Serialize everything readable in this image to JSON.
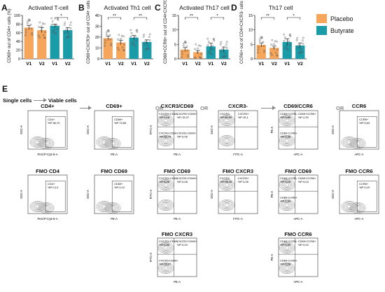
{
  "colors": {
    "placebo": "#F5A65B",
    "butyrate": "#1A9BA8"
  },
  "legend": [
    {
      "name": "Placebo",
      "color": "#F5A65B"
    },
    {
      "name": "Butyrate",
      "color": "#1A9BA8"
    }
  ],
  "chart_data": [
    {
      "type": "bar",
      "label": "A",
      "title": "Activated T-cell",
      "ylabel": "CD69+ out of CD4+ cells (%)",
      "ylim": [
        0,
        100
      ],
      "yticks": [
        0,
        20,
        40,
        60,
        80,
        100
      ],
      "categories": [
        "V1",
        "V2",
        "V1",
        "V2"
      ],
      "values": [
        72,
        66,
        76,
        66
      ],
      "errors": [
        5,
        6,
        4,
        6
      ],
      "groups": [
        "placebo",
        "placebo",
        "butyrate",
        "butyrate"
      ],
      "sig": [
        {
          "from": 2,
          "to": 3,
          "label": "*"
        }
      ]
    },
    {
      "type": "bar",
      "label": "B",
      "title": "Activated Th1 cell",
      "ylabel": "CD69+CXCR3+ out of CD4+ cells (%)",
      "ylim": [
        0,
        40
      ],
      "yticks": [
        0,
        10,
        20,
        30,
        40
      ],
      "categories": [
        "V1",
        "V2",
        "V1",
        "V2"
      ],
      "values": [
        19,
        15,
        19.5,
        15.5
      ],
      "errors": [
        2,
        2,
        2,
        2
      ],
      "groups": [
        "placebo",
        "placebo",
        "butyrate",
        "butyrate"
      ],
      "sig": [
        {
          "from": 0,
          "to": 1,
          "label": "**"
        },
        {
          "from": 2,
          "to": 3,
          "label": "**"
        }
      ]
    },
    {
      "type": "bar",
      "label": "C",
      "title": "Activated Th17 cell",
      "ylabel": "CD69+CCR6+ out of CD4+CXCR3- cells (%)",
      "ylim": [
        0,
        15
      ],
      "yticks": [
        0,
        5,
        10,
        15
      ],
      "categories": [
        "V1",
        "V2",
        "V1",
        "V2"
      ],
      "values": [
        3.2,
        2.3,
        4.3,
        3.2
      ],
      "errors": [
        0.7,
        0.6,
        1.1,
        0.9
      ],
      "groups": [
        "placebo",
        "placebo",
        "butyrate",
        "butyrate"
      ],
      "sig": [
        {
          "from": 0,
          "to": 1,
          "label": "**"
        },
        {
          "from": 2,
          "to": 3,
          "label": "*"
        }
      ]
    },
    {
      "type": "bar",
      "label": "D",
      "title": "Th17 cell",
      "ylabel": "CCR6+ out of CD4+CXCR3- cells (%)",
      "ylim": [
        0,
        15
      ],
      "yticks": [
        0,
        5,
        10,
        15
      ],
      "categories": [
        "V1",
        "V2",
        "V1",
        "V2"
      ],
      "values": [
        4.8,
        3.8,
        5.8,
        4.6
      ],
      "errors": [
        0.7,
        0.6,
        1.1,
        0.9
      ],
      "groups": [
        "placebo",
        "placebo",
        "butyrate",
        "butyrate"
      ],
      "sig": [
        {
          "from": 0,
          "to": 1,
          "label": "**"
        },
        {
          "from": 2,
          "to": 3,
          "label": "*"
        }
      ]
    }
  ],
  "panel_e": {
    "label": "E",
    "single_cells": "Single cells",
    "viable_cells": "Viable cells",
    "or": "OR",
    "plots": [
      {
        "title": "CD4+",
        "xlab": "PerCP-Cy5-5-A",
        "ylab": "SSC-A",
        "gates": [
          "CD4+",
          "%P:38,70"
        ]
      },
      {
        "title": "CD69+",
        "xlab": "PE-A",
        "ylab": "SSC-A",
        "gates": [
          "CD69+",
          "%P:73,89"
        ]
      },
      {
        "title": "CXCR3/CD69",
        "xlab": "PE-A",
        "ylab": "FITC-A",
        "gates": [
          "CXCR3+CD69-",
          "%P:1,18",
          "CXCR3+CD69+",
          "%P:15,07",
          "CXCR3-CD69-",
          "%P:83,75",
          "CXCR3-CD69+",
          "%P:0,06"
        ]
      },
      {
        "title": "CXCR3-",
        "xlab": "FITC-A",
        "ylab": "SSC-A",
        "gates": [
          "CXCR3-",
          "%P:82,90",
          "CXCR3+",
          "%P:15,1"
        ]
      },
      {
        "title": "CD69/CCR6",
        "xlab": "APC-A",
        "ylab": "PE-A",
        "gates": [
          "CD69+CCR6-",
          "%P:0,89",
          "CD69+CCR6+",
          "%P:2,92",
          "CD69-CCR6+",
          "%P:0,36"
        ]
      },
      {
        "title": "CCR6",
        "xlab": "APC-A",
        "ylab": "SSC-A",
        "gates": [
          "CCR6+",
          "%P:5,63"
        ]
      },
      {
        "title": "FMO CD4",
        "xlab": "PerCP-Cy5-5-A",
        "ylab": "SSC-A",
        "gates": [
          "CD4+",
          "%P:0,14"
        ]
      },
      {
        "title": "FMO CD69",
        "xlab": "PE-A",
        "ylab": "SSC-A",
        "gates": [
          "CD69+",
          "%P:0,12"
        ]
      },
      {
        "title": "FMO CD69",
        "xlab": "PE-A",
        "ylab": "FITC-A",
        "gates": [
          "CXCR3+CD69-",
          "%P:8,25",
          "CXCR3+CD69+",
          "%P:0,08"
        ]
      },
      {
        "title": "FMO CXCR3",
        "xlab": "FITC-A",
        "ylab": "SSC-A",
        "gates": [
          "CXCR3-",
          "%P:99,48",
          "CXCR3+",
          "%P:0,35"
        ]
      },
      {
        "title": "FMO CD69",
        "xlab": "APC-A",
        "ylab": "PE-A",
        "gates": [
          "CD69+CCR6-",
          "%P:0,16",
          "CD69+CCR6+",
          "%P:0,04",
          "CD69-CCR6+",
          "%P:1,44"
        ]
      },
      {
        "title": "FMO CCR6",
        "xlab": "APC-A",
        "ylab": "SSC-A",
        "gates": [
          "CCR6+",
          "%P:0,19"
        ]
      },
      {
        "title": "FMO CXCR3",
        "xlab": "PE-A",
        "ylab": "FITC-A",
        "gates": [
          "CXCR3+CD69-",
          "%P:0,30",
          "CXCR3+CD69+",
          "%P:0,20",
          "CXCR3-CD69+",
          "%P:18,27"
        ]
      },
      {
        "title": "FMO CCR6",
        "xlab": "APC-A",
        "ylab": "PE-A",
        "gates": [
          "CD69+CCR6-",
          "%P:0,30",
          "CD69+CCR6+",
          "%P:0,02",
          "CD69-CCR6+",
          "%P:0,06"
        ]
      }
    ]
  }
}
